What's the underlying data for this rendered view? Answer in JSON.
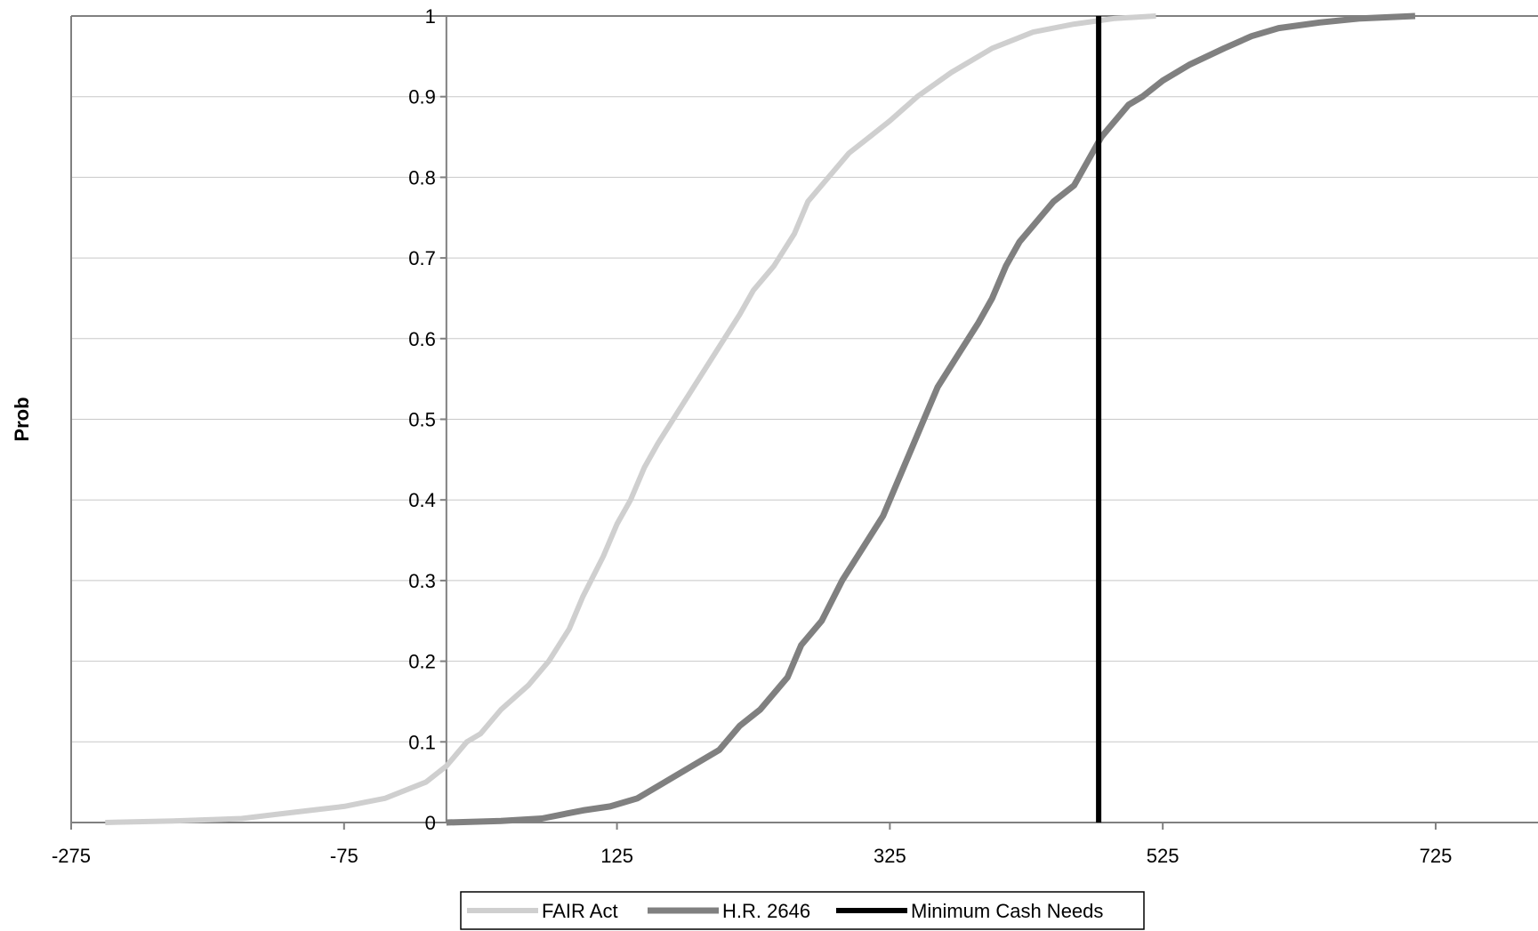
{
  "chart_data": {
    "type": "line",
    "title": "",
    "xlabel": "",
    "ylabel": "Prob",
    "xlim": [
      -275,
      800
    ],
    "ylim": [
      0,
      1
    ],
    "x_ticks": [
      -275,
      -75,
      125,
      325,
      525,
      725
    ],
    "y_ticks": [
      0,
      0.1,
      0.2,
      0.3,
      0.4,
      0.5,
      0.6,
      0.7,
      0.8,
      0.9,
      1
    ],
    "grid": "horizontal",
    "legend_position": "bottom",
    "series": [
      {
        "name": "FAIR Act",
        "color": "#cfcfcf",
        "x": [
          -250,
          -200,
          -150,
          -125,
          -100,
          -75,
          -60,
          -45,
          -30,
          -15,
          0,
          15,
          25,
          40,
          60,
          75,
          90,
          100,
          115,
          125,
          135,
          145,
          155,
          170,
          185,
          200,
          215,
          225,
          240,
          255,
          265,
          280,
          295,
          310,
          325,
          345,
          370,
          400,
          430,
          460,
          490,
          520
        ],
        "y": [
          0,
          0.002,
          0.005,
          0.01,
          0.015,
          0.02,
          0.025,
          0.03,
          0.04,
          0.05,
          0.07,
          0.1,
          0.11,
          0.14,
          0.17,
          0.2,
          0.24,
          0.28,
          0.33,
          0.37,
          0.4,
          0.44,
          0.47,
          0.51,
          0.55,
          0.59,
          0.63,
          0.66,
          0.69,
          0.73,
          0.77,
          0.8,
          0.83,
          0.85,
          0.87,
          0.9,
          0.93,
          0.96,
          0.98,
          0.99,
          0.997,
          1.0
        ]
      },
      {
        "name": "H.R. 2646",
        "color": "#808080",
        "x": [
          0,
          40,
          70,
          85,
          100,
          120,
          140,
          160,
          180,
          200,
          215,
          230,
          250,
          260,
          275,
          290,
          305,
          320,
          330,
          340,
          350,
          360,
          375,
          390,
          400,
          410,
          420,
          435,
          445,
          460,
          470,
          480,
          490,
          500,
          510,
          525,
          545,
          570,
          590,
          610,
          640,
          670,
          710
        ],
        "y": [
          0,
          0.002,
          0.005,
          0.01,
          0.015,
          0.02,
          0.03,
          0.05,
          0.07,
          0.09,
          0.12,
          0.14,
          0.18,
          0.22,
          0.25,
          0.3,
          0.34,
          0.38,
          0.42,
          0.46,
          0.5,
          0.54,
          0.58,
          0.62,
          0.65,
          0.69,
          0.72,
          0.75,
          0.77,
          0.79,
          0.82,
          0.85,
          0.87,
          0.89,
          0.9,
          0.92,
          0.94,
          0.96,
          0.975,
          0.985,
          0.992,
          0.997,
          1.0
        ]
      },
      {
        "name": "Minimum Cash Needs",
        "color": "#000000",
        "x": [
          478,
          478
        ],
        "y": [
          0,
          1
        ]
      }
    ]
  }
}
